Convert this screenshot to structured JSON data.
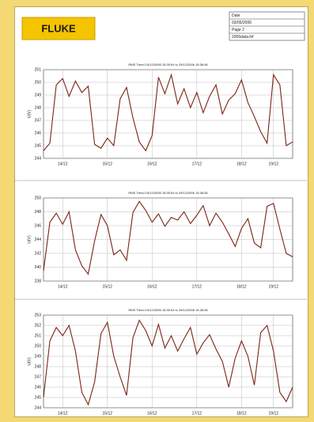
{
  "header": {
    "logo": "FLUKE",
    "info": [
      "Date",
      "03/05/2006",
      "Page 2",
      "2006data.fvf"
    ]
  },
  "chart_data": [
    {
      "type": "line",
      "title": "RMS Trend 19/12/2006 15:35:04 to 29/12/2006 15:36:06",
      "y_label": "U(V)",
      "x": [
        0,
        1,
        2,
        3,
        4,
        5,
        6,
        7,
        8,
        9,
        10,
        11,
        12,
        13,
        14,
        15,
        16,
        17,
        18,
        19,
        20,
        21,
        22,
        23,
        24,
        25,
        26,
        27,
        28,
        29,
        30,
        31,
        32,
        33,
        34,
        35,
        36,
        37,
        38,
        39
      ],
      "series": [
        {
          "name": "U",
          "color": "#7a2414",
          "values": [
            244.6,
            245.2,
            249.8,
            250.3,
            248.9,
            250.1,
            249.2,
            249.7,
            245.1,
            244.8,
            245.6,
            245.0,
            248.7,
            249.6,
            247.2,
            245.3,
            244.6,
            245.8,
            250.4,
            249.1,
            250.6,
            248.3,
            249.5,
            248.0,
            249.2,
            247.6,
            248.9,
            249.8,
            247.5,
            248.6,
            249.1,
            250.2,
            248.4,
            247.3,
            246.1,
            245.2,
            250.6,
            249.8,
            245.0,
            245.3
          ]
        }
      ],
      "xlim": [
        0,
        39
      ],
      "xticks": [
        {
          "value": 3,
          "label": "14/12"
        },
        {
          "value": 10,
          "label": "15/12"
        },
        {
          "value": 17,
          "label": "16/12"
        },
        {
          "value": 24,
          "label": "17/12"
        },
        {
          "value": 31,
          "label": "18/12"
        },
        {
          "value": 36,
          "label": "19/12"
        }
      ],
      "ylim": [
        244,
        251
      ],
      "yticks": [
        244,
        245,
        246,
        247,
        248,
        249,
        250,
        251
      ],
      "grid": true
    },
    {
      "type": "line",
      "title": "RMS Trend 19/12/2006 15:35:04 to 29/12/2006 15:36:06",
      "y_label": "U(V)",
      "x": [
        0,
        1,
        2,
        3,
        4,
        5,
        6,
        7,
        8,
        9,
        10,
        11,
        12,
        13,
        14,
        15,
        16,
        17,
        18,
        19,
        20,
        21,
        22,
        23,
        24,
        25,
        26,
        27,
        28,
        29,
        30,
        31,
        32,
        33,
        34,
        35,
        36,
        37,
        38,
        39
      ],
      "series": [
        {
          "name": "U",
          "color": "#7a2414",
          "values": [
            239.5,
            246.5,
            247.8,
            246.2,
            248.0,
            242.5,
            240.2,
            239.0,
            243.8,
            247.6,
            246.0,
            241.8,
            242.5,
            241.0,
            247.9,
            249.5,
            248.2,
            246.5,
            247.7,
            245.9,
            247.2,
            246.8,
            248.0,
            246.3,
            247.5,
            248.9,
            246.0,
            247.8,
            246.5,
            244.8,
            243.0,
            245.6,
            247.0,
            243.5,
            242.8,
            248.8,
            249.2,
            245.5,
            242.0,
            241.5
          ]
        }
      ],
      "xlim": [
        0,
        39
      ],
      "xticks": [
        {
          "value": 3,
          "label": "14/12"
        },
        {
          "value": 10,
          "label": "15/12"
        },
        {
          "value": 17,
          "label": "16/12"
        },
        {
          "value": 24,
          "label": "17/12"
        },
        {
          "value": 31,
          "label": "18/12"
        },
        {
          "value": 36,
          "label": "19/12"
        }
      ],
      "ylim": [
        238,
        250
      ],
      "yticks": [
        238,
        240,
        242,
        244,
        246,
        248,
        250
      ],
      "grid": true
    },
    {
      "type": "line",
      "title": "RMS Trend 19/12/2006 15:35:04 to 29/12/2006 15:36:06",
      "y_label": "U(V)",
      "x": [
        0,
        1,
        2,
        3,
        4,
        5,
        6,
        7,
        8,
        9,
        10,
        11,
        12,
        13,
        14,
        15,
        16,
        17,
        18,
        19,
        20,
        21,
        22,
        23,
        24,
        25,
        26,
        27,
        28,
        29,
        30,
        31,
        32,
        33,
        34,
        35,
        36,
        37,
        38,
        39
      ],
      "series": [
        {
          "name": "U",
          "color": "#7a2414",
          "values": [
            245.0,
            250.5,
            251.8,
            251.0,
            252.0,
            249.5,
            245.5,
            244.3,
            246.5,
            251.2,
            252.3,
            249.0,
            247.0,
            245.2,
            250.8,
            252.5,
            251.5,
            250.0,
            252.1,
            249.8,
            251.0,
            249.5,
            250.7,
            251.8,
            249.2,
            250.3,
            251.1,
            249.7,
            248.5,
            246.0,
            248.8,
            250.5,
            249.0,
            246.2,
            251.3,
            252.0,
            249.5,
            245.5,
            244.6,
            246.0
          ]
        }
      ],
      "xlim": [
        0,
        39
      ],
      "xticks": [
        {
          "value": 3,
          "label": "14/12"
        },
        {
          "value": 10,
          "label": "15/12"
        },
        {
          "value": 17,
          "label": "16/12"
        },
        {
          "value": 24,
          "label": "17/12"
        },
        {
          "value": 31,
          "label": "18/12"
        },
        {
          "value": 36,
          "label": "19/12"
        }
      ],
      "ylim": [
        244,
        253
      ],
      "yticks": [
        244,
        245,
        246,
        247,
        248,
        249,
        250,
        251,
        252,
        253
      ],
      "grid": true
    }
  ]
}
